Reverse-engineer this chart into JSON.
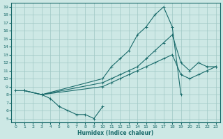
{
  "xlabel": "Humidex (Indice chaleur)",
  "xlim": [
    -0.5,
    23.5
  ],
  "ylim": [
    4.5,
    19.5
  ],
  "xticks": [
    0,
    1,
    2,
    3,
    4,
    5,
    6,
    7,
    8,
    9,
    10,
    11,
    12,
    13,
    14,
    15,
    16,
    17,
    18,
    19,
    20,
    21,
    22,
    23
  ],
  "yticks": [
    5,
    6,
    7,
    8,
    9,
    10,
    11,
    12,
    13,
    14,
    15,
    16,
    17,
    18,
    19
  ],
  "bg_color": "#cde8e5",
  "grid_color": "#a0c8c5",
  "line_color": "#1a6b6b",
  "lines": [
    {
      "x": [
        0,
        1,
        3,
        10,
        11,
        12,
        13,
        14,
        15,
        16,
        17,
        18,
        19
      ],
      "y": [
        8.5,
        8.5,
        8.0,
        10.0,
        11.5,
        12.5,
        13.5,
        15.5,
        16.5,
        18.0,
        19.0,
        16.5,
        8.0
      ]
    },
    {
      "x": [
        3,
        4,
        5,
        6,
        7,
        8,
        9,
        10
      ],
      "y": [
        8.0,
        7.5,
        6.5,
        6.0,
        5.5,
        5.5,
        5.0,
        6.5
      ]
    },
    {
      "x": [
        1,
        3,
        10,
        11,
        12,
        13,
        14,
        15,
        16,
        17,
        18,
        19,
        20,
        21,
        22,
        23
      ],
      "y": [
        8.5,
        8.0,
        9.5,
        10.0,
        10.5,
        11.0,
        11.5,
        12.5,
        13.5,
        14.5,
        15.5,
        12.0,
        11.0,
        12.0,
        11.5,
        11.5
      ]
    },
    {
      "x": [
        1,
        3,
        10,
        11,
        12,
        13,
        14,
        15,
        16,
        17,
        18,
        19,
        20,
        21,
        22,
        23
      ],
      "y": [
        8.5,
        8.0,
        9.0,
        9.5,
        10.0,
        10.5,
        11.0,
        11.5,
        12.0,
        12.5,
        13.0,
        10.5,
        10.0,
        10.5,
        11.0,
        11.5
      ]
    }
  ]
}
